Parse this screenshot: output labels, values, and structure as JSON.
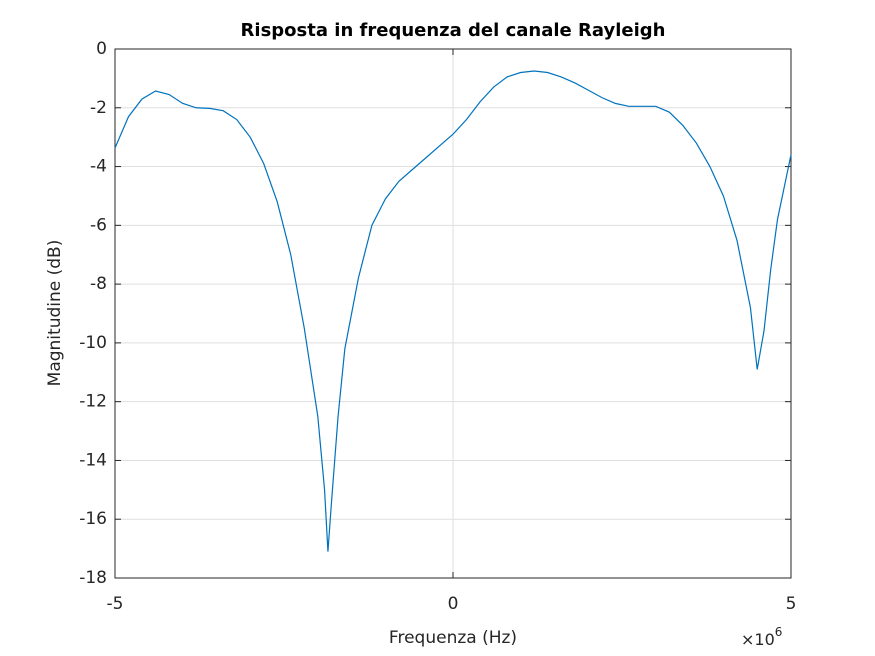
{
  "chart_data": {
    "type": "line",
    "title": "Risposta in frequenza del canale Rayleigh",
    "xlabel": "Frequenza (Hz)",
    "ylabel": "Magnitudine (dB)",
    "x_multiplier": {
      "base": "×10",
      "exponent": "6"
    },
    "x": [
      -5,
      -4.8,
      -4.6,
      -4.4,
      -4.2,
      -4.0,
      -3.8,
      -3.6,
      -3.4,
      -3.2,
      -3.0,
      -2.8,
      -2.6,
      -2.4,
      -2.2,
      -2.0,
      -1.9,
      -1.85,
      -1.8,
      -1.7,
      -1.6,
      -1.4,
      -1.2,
      -1.0,
      -0.8,
      -0.6,
      -0.4,
      -0.2,
      0,
      0.2,
      0.4,
      0.6,
      0.8,
      1.0,
      1.2,
      1.4,
      1.6,
      1.8,
      2.0,
      2.2,
      2.4,
      2.6,
      2.8,
      3.0,
      3.2,
      3.4,
      3.6,
      3.8,
      4.0,
      4.2,
      4.4,
      4.5,
      4.6,
      4.7,
      4.8,
      5.0
    ],
    "series": [
      {
        "color": "#0072bd",
        "values": [
          -3.37,
          -2.3,
          -1.7,
          -1.43,
          -1.55,
          -1.85,
          -2.0,
          -2.02,
          -2.1,
          -2.4,
          -3.0,
          -3.9,
          -5.2,
          -7.0,
          -9.5,
          -12.5,
          -15,
          -17.1,
          -15.5,
          -12.5,
          -10.2,
          -7.8,
          -6.0,
          -5.1,
          -4.5,
          -4.1,
          -3.7,
          -3.3,
          -2.9,
          -2.4,
          -1.8,
          -1.3,
          -0.95,
          -0.8,
          -0.75,
          -0.8,
          -0.95,
          -1.15,
          -1.4,
          -1.65,
          -1.85,
          -1.95,
          -1.95,
          -1.95,
          -2.15,
          -2.6,
          -3.2,
          -4.0,
          -5.0,
          -6.5,
          -8.8,
          -10.9,
          -9.6,
          -7.5,
          -5.8,
          -3.6
        ]
      }
    ],
    "xlim": [
      -5,
      5
    ],
    "xticks": [
      -5,
      0,
      5
    ],
    "ylim": [
      -18,
      0
    ],
    "yticks": [
      -18,
      -16,
      -14,
      -12,
      -10,
      -8,
      -6,
      -4,
      -2,
      0
    ],
    "grid": true
  }
}
